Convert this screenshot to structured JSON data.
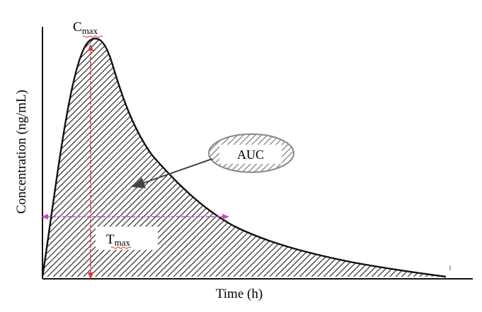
{
  "diagram": {
    "x_label": "Time (h)",
    "y_label": "Concentration (ng/mL)",
    "cmax_main": "C",
    "cmax_sub": "max",
    "tmax_main": "T",
    "tmax_sub": "max",
    "auc_label": "AUC"
  },
  "colors": {
    "curve": "#111111",
    "hatch": "#1a1a1a",
    "cmax_marker": "#d63b3b",
    "half_conc_marker": "#c24dc2",
    "auc_callout": "#444444"
  }
}
